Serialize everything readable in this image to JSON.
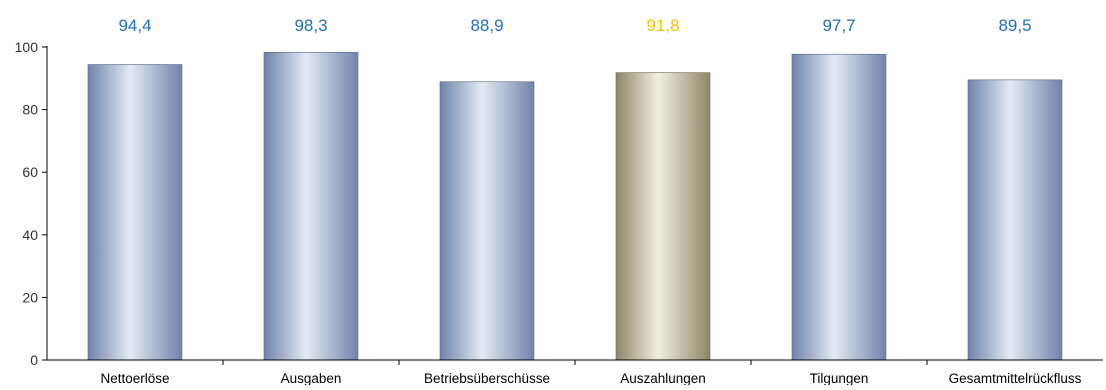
{
  "chart_data": {
    "type": "bar",
    "categories": [
      "Nettoerlöse",
      "Ausgaben",
      "Betriebsüberschüsse",
      "Auszahlungen",
      "Tilgungen",
      "Gesamtmittelrückfluss"
    ],
    "values": [
      94.4,
      98.3,
      88.9,
      91.8,
      97.7,
      89.5
    ],
    "value_labels": [
      "94,4",
      "98,3",
      "88,9",
      "91,8",
      "97,7",
      "89,5"
    ],
    "highlight_index": 3,
    "ylim": [
      0,
      100
    ],
    "yticks": [
      0,
      20,
      40,
      60,
      80,
      100
    ],
    "grid": false,
    "legend": "none",
    "colors": {
      "bar_dark": "#6f84a8",
      "bar_light": "#e4eaf4",
      "bar_highlight_dark": "#8f8668",
      "bar_highlight_light": "#f1eee2",
      "label_default": "#1f6fc5",
      "label_highlight": "#f5c400",
      "axis": "#000000",
      "tick_text": "#333333"
    }
  }
}
